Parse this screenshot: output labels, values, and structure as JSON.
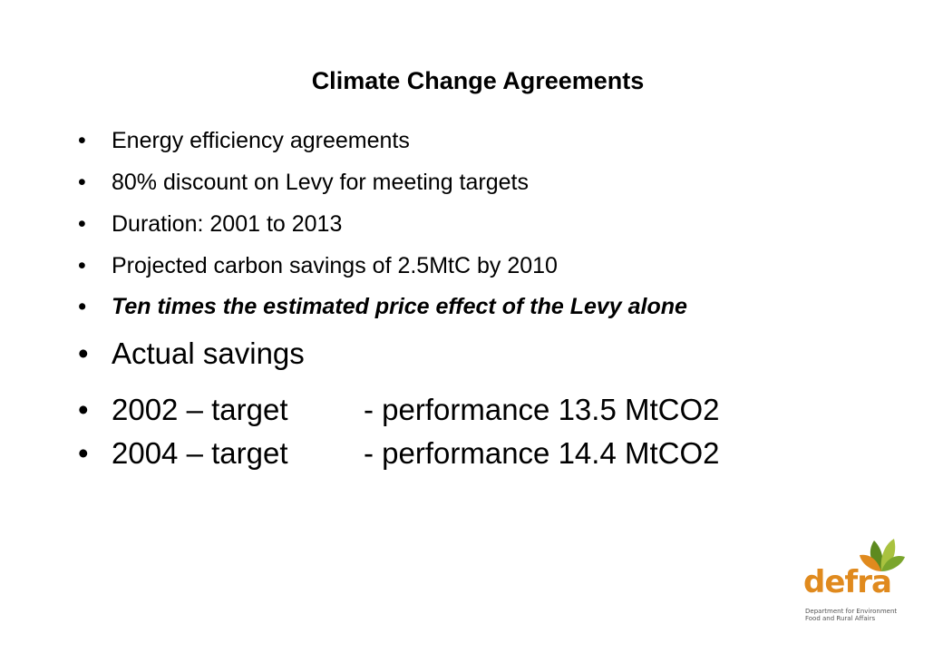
{
  "title": "Climate Change Agreements",
  "bullet_symbol": "•",
  "bullets": [
    "Energy efficiency agreements",
    "80% discount on Levy for meeting targets",
    "Duration: 2001 to 2013",
    "Projected carbon savings of 2.5MtC by 2010",
    "Ten times the estimated price effect of the Levy alone",
    "Actual savings"
  ],
  "performance": [
    {
      "year_target": "2002 – target",
      "performance": "- performance 13.5 MtCO2"
    },
    {
      "year_target": "2004 – target",
      "performance": "- performance 14.4 MtCO2"
    }
  ],
  "logo": {
    "wordmark": "defra",
    "line1": "Department for Environment",
    "line2": "Food and Rural Affairs",
    "colors": {
      "orange": "#e08a1e",
      "green_dark": "#5d8a1f",
      "green_light": "#a9c23f"
    }
  }
}
